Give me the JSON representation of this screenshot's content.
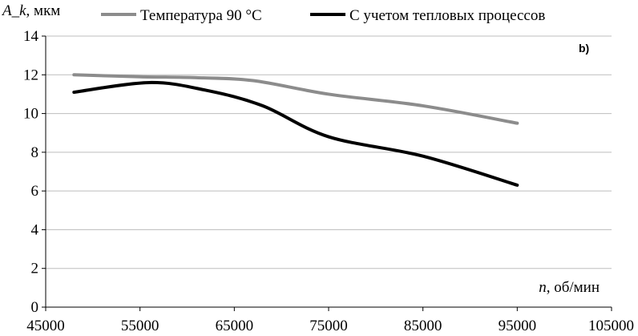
{
  "chart_data": {
    "type": "line",
    "title": "",
    "panel_label": "b)",
    "ylabel_var": "A_k",
    "ylabel_unit": ", мкм",
    "xlabel_var": "n",
    "xlabel_unit": ", об/мин",
    "xlim": [
      45000,
      105000
    ],
    "ylim": [
      0,
      14
    ],
    "x_ticks": [
      45000,
      55000,
      65000,
      75000,
      85000,
      95000,
      105000
    ],
    "y_ticks": [
      0,
      2,
      4,
      6,
      8,
      10,
      12,
      14
    ],
    "x_tick_labels": [
      "45000",
      "55000",
      "65000",
      "75000",
      "85000",
      "95000",
      "105000"
    ],
    "y_tick_labels": [
      "0",
      "2",
      "4",
      "6",
      "8",
      "10",
      "12",
      "14"
    ],
    "grid": "horizontal",
    "legend_position": "top",
    "series": [
      {
        "name": "Температура 90 °C",
        "color": "#8c8c8c",
        "x": [
          48000,
          55000,
          61000,
          67000,
          75000,
          85000,
          95000
        ],
        "y": [
          12.0,
          11.9,
          11.85,
          11.7,
          11.0,
          10.4,
          9.5
        ]
      },
      {
        "name": "С учетом тепловых процессов",
        "color": "#000000",
        "x": [
          48000,
          56000,
          62000,
          68000,
          75000,
          85000,
          95000
        ],
        "y": [
          11.1,
          11.6,
          11.2,
          10.4,
          8.8,
          7.8,
          6.3
        ]
      }
    ],
    "legend": [
      {
        "label": "Температура 90 °C",
        "color": "#8c8c8c"
      },
      {
        "label": "С учетом тепловых процессов",
        "color": "#000000"
      }
    ]
  }
}
